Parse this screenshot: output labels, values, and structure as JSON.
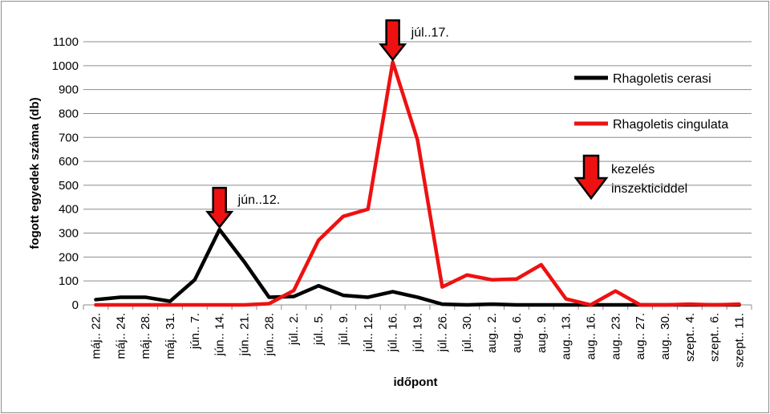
{
  "chart_data": {
    "type": "line",
    "title": "",
    "xlabel": "időpont",
    "ylabel": "fogott egyedek száma (db)",
    "ylim": [
      0,
      1100
    ],
    "yticks": [
      0,
      100,
      200,
      300,
      400,
      500,
      600,
      700,
      800,
      900,
      1000,
      1100
    ],
    "grid": true,
    "legend_position": "right",
    "categories": [
      "máj.. 22.",
      "máj.. 24.",
      "máj.. 28.",
      "máj.. 31.",
      "jún.. 7.",
      "jún.. 14.",
      "jún.. 21.",
      "jún.. 28.",
      "júl.. 2.",
      "júl.. 5.",
      "júl.. 9.",
      "júl.. 12.",
      "júl.. 16.",
      "júl.. 19.",
      "júl.. 26.",
      "júl.. 30.",
      "aug.. 2.",
      "aug.. 6.",
      "aug.. 9.",
      "aug.. 13.",
      "aug.. 16.",
      "aug.. 23.",
      "aug.. 27.",
      "aug.. 30.",
      "szept.. 4.",
      "szept.. 6.",
      "szept.. 11."
    ],
    "series": [
      {
        "name": "Rhagoletis cerasi",
        "color": "#000000",
        "values": [
          22,
          32,
          32,
          15,
          105,
          315,
          180,
          32,
          35,
          80,
          40,
          32,
          55,
          32,
          3,
          0,
          3,
          0,
          0,
          0,
          0,
          0,
          0,
          0,
          0,
          0,
          0
        ]
      },
      {
        "name": "Rhagoletis cingulata",
        "color": "#ee1111",
        "values": [
          0,
          0,
          0,
          0,
          0,
          0,
          0,
          5,
          60,
          270,
          370,
          400,
          1015,
          690,
          75,
          125,
          105,
          108,
          168,
          25,
          0,
          58,
          0,
          0,
          3,
          0,
          3
        ]
      }
    ],
    "annotations": [
      {
        "text": "jún..12.",
        "category_index": 5,
        "value": 315
      },
      {
        "text": "júl..17.",
        "category_index": 12,
        "value": 1015
      }
    ],
    "legend_marker": {
      "label_line1": "kezelés",
      "label_line2": "inszekticiddel",
      "icon": "down-arrow-icon"
    },
    "colors": {
      "arrow_fill": "#ee1111",
      "arrow_stroke": "#000000",
      "grid": "#8c8c8c"
    }
  }
}
